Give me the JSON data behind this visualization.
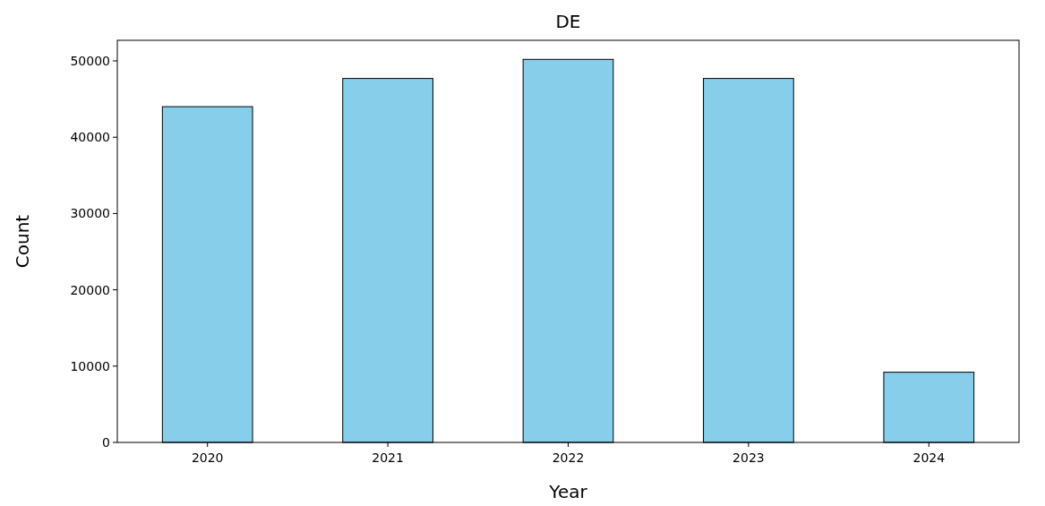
{
  "chart_data": {
    "type": "bar",
    "title": "DE",
    "xlabel": "Year",
    "ylabel": "Count",
    "categories": [
      "2020",
      "2021",
      "2022",
      "2023",
      "2024"
    ],
    "values": [
      44000,
      47700,
      50200,
      47700,
      9200
    ],
    "color": "#87ceeb",
    "ylim": [
      0,
      52700
    ],
    "yticks": [
      0,
      10000,
      20000,
      30000,
      40000,
      50000
    ],
    "grid": false
  }
}
